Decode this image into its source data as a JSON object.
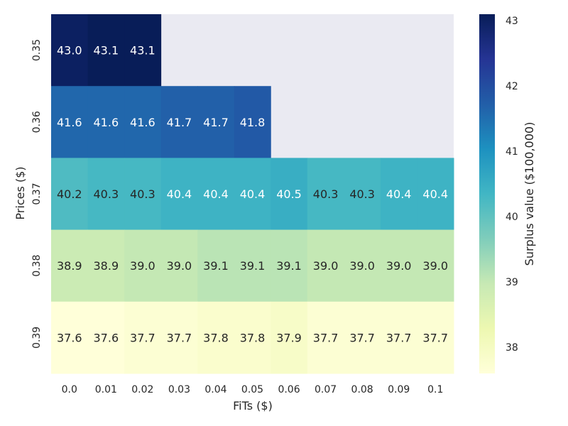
{
  "chart_data": {
    "type": "heatmap",
    "xlabel": "FiTs ($)",
    "ylabel": "Prices ($)",
    "x_categories": [
      "0.0",
      "0.01",
      "0.02",
      "0.03",
      "0.04",
      "0.05",
      "0.06",
      "0.07",
      "0.08",
      "0.09",
      "0.1"
    ],
    "y_categories": [
      "0.35",
      "0.36",
      "0.37",
      "0.38",
      "0.39"
    ],
    "values": [
      [
        43.0,
        43.1,
        43.1,
        null,
        null,
        null,
        null,
        null,
        null,
        null,
        null
      ],
      [
        41.6,
        41.6,
        41.6,
        41.7,
        41.7,
        41.8,
        null,
        null,
        null,
        null,
        null
      ],
      [
        40.2,
        40.3,
        40.3,
        40.4,
        40.4,
        40.4,
        40.5,
        40.3,
        40.3,
        40.4,
        40.4
      ],
      [
        38.9,
        38.9,
        39.0,
        39.0,
        39.1,
        39.1,
        39.1,
        39.0,
        39.0,
        39.0,
        39.0
      ],
      [
        37.6,
        37.6,
        37.7,
        37.7,
        37.8,
        37.8,
        37.9,
        37.7,
        37.7,
        37.7,
        37.7
      ]
    ],
    "colorbar": {
      "label": "Surplus value ($100,000)",
      "range": [
        37.6,
        43.1
      ],
      "ticks": [
        "38",
        "39",
        "40",
        "41",
        "42",
        "43"
      ],
      "colormap": "YlGnBu"
    },
    "missing_color": "#eaeaf2",
    "grid": false
  }
}
